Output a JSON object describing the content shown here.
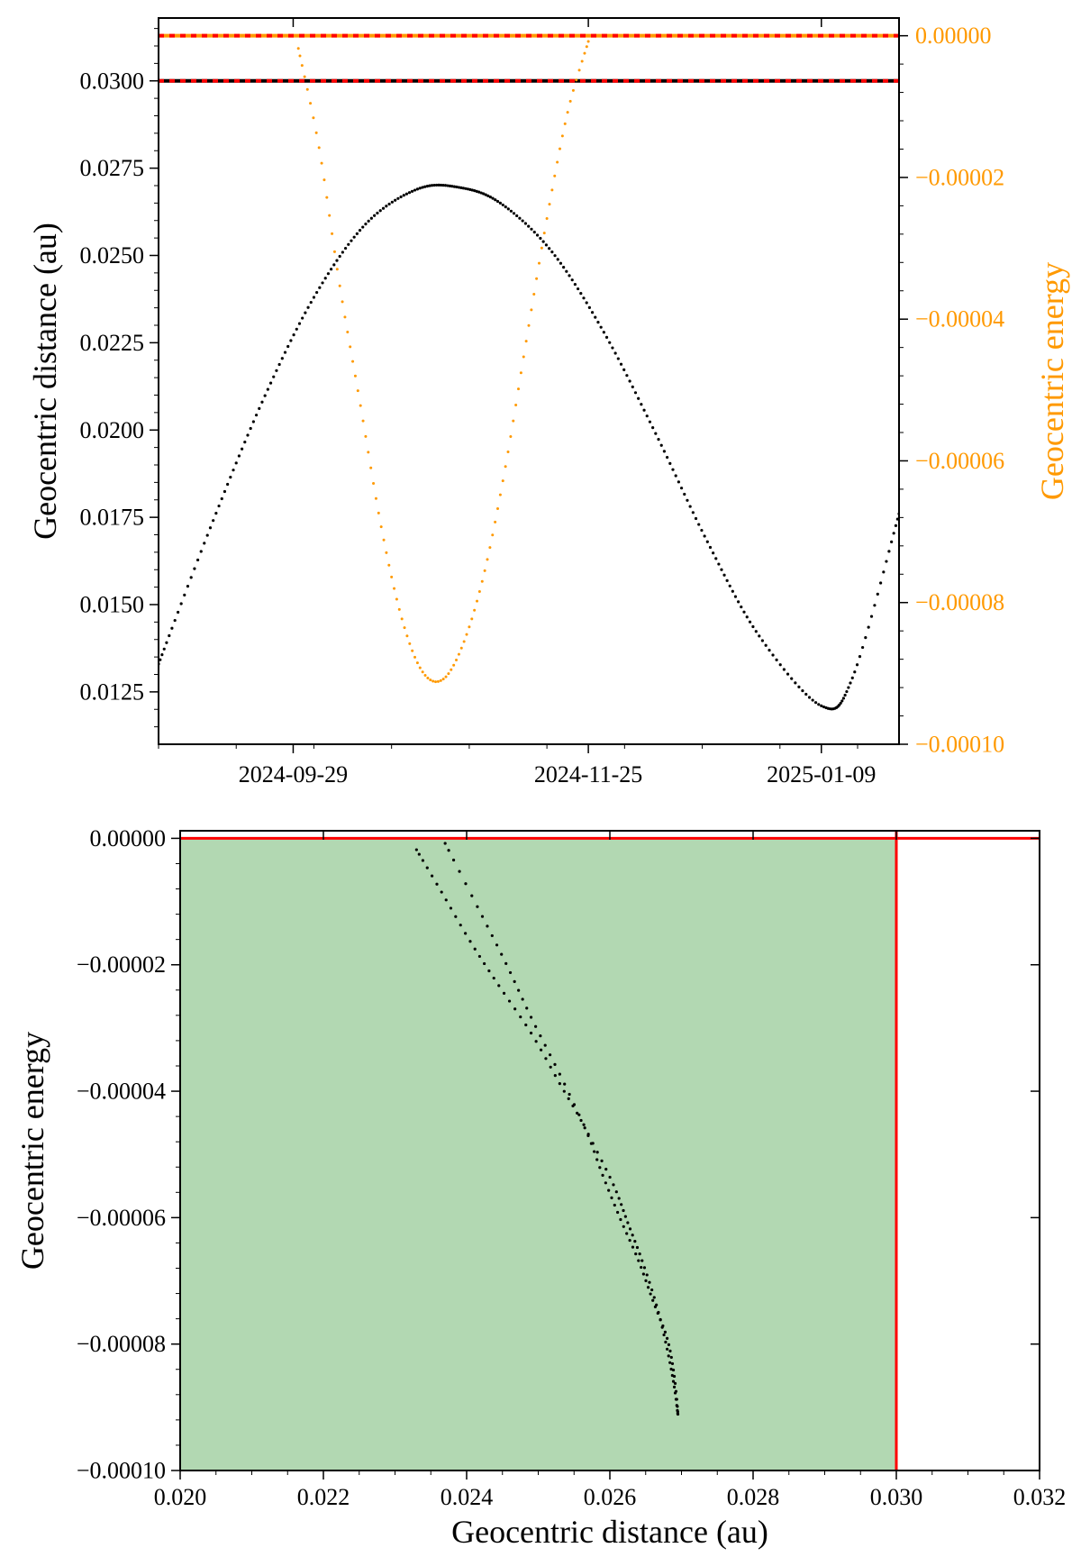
{
  "colors": {
    "distance": "#000000",
    "energy": "#ff9900",
    "threshold": "#ff0000",
    "region_fill": "#b2d8b2"
  },
  "chart_data": [
    {
      "type": "scatter",
      "panel": "top",
      "xlabel": "",
      "ylabel": "Geocentric distance (au)",
      "ylabel_right": "Geocentric energy",
      "x_type": "date",
      "xlim": [
        "2024-09-03",
        "2025-01-24"
      ],
      "ylim": [
        0.011,
        0.0318
      ],
      "ylim_right": [
        -0.0001,
        2.5e-06
      ],
      "x_ticks": [
        "2024-09-29",
        "2024-11-25",
        "2025-01-09"
      ],
      "y_ticks": [
        "0.0125",
        "0.0150",
        "0.0175",
        "0.0200",
        "0.0225",
        "0.0250",
        "0.0275",
        "0.0300"
      ],
      "y_ticks_right": [
        "0.00000",
        "−0.00002",
        "−0.00004",
        "−0.00006",
        "−0.00008",
        "−0.00010"
      ],
      "hlines": [
        {
          "axis": "left",
          "y": 0.03,
          "colors": [
            "#000000",
            "#ff0000"
          ],
          "style": "dashed"
        },
        {
          "axis": "right",
          "y": 0.0,
          "colors": [
            "#ff9900",
            "#ff0000"
          ],
          "style": "dashed"
        }
      ],
      "series": [
        {
          "axis": "left",
          "color": "#000000",
          "x": [
            "2024-09-03",
            "2024-09-13",
            "2024-09-23",
            "2024-10-03",
            "2024-10-13",
            "2024-10-23",
            "2024-10-31",
            "2024-11-08",
            "2024-11-18",
            "2024-11-28",
            "2024-12-08",
            "2024-12-18",
            "2024-12-28",
            "2025-01-09",
            "2025-01-15",
            "2025-01-24"
          ],
          "y": [
            0.0133,
            0.0172,
            0.0208,
            0.0238,
            0.0259,
            0.0269,
            0.02695,
            0.0265,
            0.0251,
            0.0228,
            0.0199,
            0.0168,
            0.0141,
            0.0121,
            0.0129,
            0.0176
          ]
        },
        {
          "axis": "right",
          "color": "#ff9900",
          "x": [
            "2024-09-30",
            "2024-10-04",
            "2024-10-08",
            "2024-10-12",
            "2024-10-16",
            "2024-10-20",
            "2024-10-24",
            "2024-10-28",
            "2024-11-01",
            "2024-11-05",
            "2024-11-09",
            "2024-11-13",
            "2024-11-17",
            "2024-11-21",
            "2024-11-25"
          ],
          "y": [
            -1.8e-06,
            -1.58e-05,
            -3.53e-05,
            -5.22e-05,
            -6.93e-05,
            -8.23e-05,
            -8.98e-05,
            -9.08e-05,
            -8.55e-05,
            -7.55e-05,
            -6.08e-05,
            -4.31e-05,
            -2.58e-05,
            -1.08e-05,
            -8e-07
          ]
        }
      ]
    },
    {
      "type": "scatter",
      "panel": "bottom",
      "xlabel": "Geocentric distance (au)",
      "ylabel": "Geocentric energy",
      "xlim": [
        0.02,
        0.032
      ],
      "ylim": [
        -0.0001,
        1.2e-06
      ],
      "x_ticks": [
        "0.020",
        "0.022",
        "0.024",
        "0.026",
        "0.028",
        "0.030",
        "0.032"
      ],
      "y_ticks": [
        "0.00000",
        "−0.00002",
        "−0.00004",
        "−0.00006",
        "−0.00008",
        "−0.00010"
      ],
      "region": {
        "x": [
          0.02,
          0.03
        ],
        "y": [
          -0.0001,
          0.0
        ]
      },
      "vline": {
        "x": 0.03,
        "color": "#ff0000"
      },
      "hline": {
        "y": 0.0,
        "color": "#ff0000"
      },
      "series": [
        {
          "color": "#000000",
          "x": [
            0.0233,
            0.02365,
            0.02405,
            0.02445,
            0.0249,
            0.0253,
            0.02565,
            0.0259,
            0.02615,
            0.0264,
            0.0266,
            0.0268,
            0.0269,
            0.02695,
            0.0269,
            0.0268,
            0.02665,
            0.02645,
            0.02625,
            0.02605,
            0.0257,
            0.0253,
            0.0249,
            0.02455,
            0.02415,
            0.0237
          ],
          "y": [
            -1.8e-06,
            -8.5e-06,
            -1.63e-05,
            -2.33e-05,
            -3.08e-05,
            -3.88e-05,
            -4.58e-05,
            -5.33e-05,
            -6.03e-05,
            -6.68e-05,
            -7.31e-05,
            -7.91e-05,
            -8.51e-05,
            -9.11e-05,
            -8.68e-05,
            -8.08e-05,
            -7.38e-05,
            -6.68e-05,
            -6.08e-05,
            -5.48e-05,
            -4.68e-05,
            -3.73e-05,
            -2.83e-05,
            -1.98e-05,
            -1.08e-05,
            -8e-07
          ]
        }
      ]
    }
  ]
}
